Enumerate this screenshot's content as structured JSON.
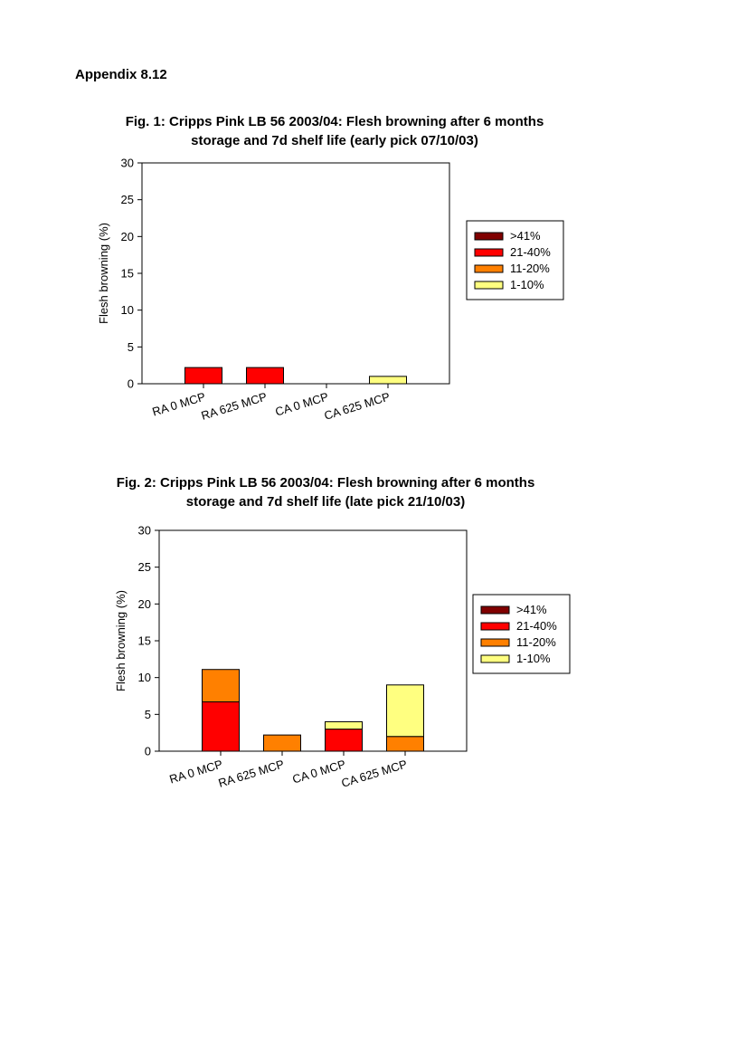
{
  "page": {
    "heading": "Appendix 8.12"
  },
  "colors": {
    ">41%": "#800000",
    "21-40%": "#ff0000",
    "11-20%": "#ff8000",
    "1-10%": "#ffff80"
  },
  "chart_data": [
    {
      "type": "bar",
      "stacked": true,
      "title_line1": "Fig. 1: Cripps Pink LB 56 2003/04: Flesh browning after 6 months",
      "title_line2": "storage and 7d shelf life (early pick 07/10/03)",
      "xlabel": "",
      "ylabel": "Flesh browning (%)",
      "ylim": [
        0,
        30
      ],
      "yticks": [
        0,
        5,
        10,
        15,
        20,
        25,
        30
      ],
      "grid": false,
      "legend_position": "right",
      "categories": [
        "RA 0 MCP",
        "RA 625 MCP",
        "CA 0 MCP",
        "CA 625 MCP"
      ],
      "series": [
        {
          "name": ">41%",
          "color": "#800000",
          "values": [
            0,
            0,
            0,
            0
          ]
        },
        {
          "name": "21-40%",
          "color": "#ff0000",
          "values": [
            2.2,
            2.2,
            0,
            0
          ]
        },
        {
          "name": "11-20%",
          "color": "#ff8000",
          "values": [
            0,
            0,
            0,
            0
          ]
        },
        {
          "name": "1-10%",
          "color": "#ffff80",
          "values": [
            0,
            0,
            0,
            1.0
          ]
        }
      ]
    },
    {
      "type": "bar",
      "stacked": true,
      "title_line1": "Fig. 2: Cripps Pink LB 56 2003/04: Flesh browning after 6 months",
      "title_line2": "storage and 7d shelf life (late pick 21/10/03)",
      "xlabel": "",
      "ylabel": "Flesh browning (%)",
      "ylim": [
        0,
        30
      ],
      "yticks": [
        0,
        5,
        10,
        15,
        20,
        25,
        30
      ],
      "grid": false,
      "legend_position": "right",
      "categories": [
        "RA 0 MCP",
        "RA 625 MCP",
        "CA 0 MCP",
        "CA 625 MCP"
      ],
      "series": [
        {
          "name": ">41%",
          "color": "#800000",
          "values": [
            0,
            0,
            0,
            0
          ]
        },
        {
          "name": "21-40%",
          "color": "#ff0000",
          "values": [
            6.7,
            0,
            3.0,
            0
          ]
        },
        {
          "name": "11-20%",
          "color": "#ff8000",
          "values": [
            4.4,
            2.2,
            0,
            2.0
          ]
        },
        {
          "name": "1-10%",
          "color": "#ffff80",
          "values": [
            0,
            0,
            1.0,
            7.0
          ]
        }
      ]
    }
  ]
}
